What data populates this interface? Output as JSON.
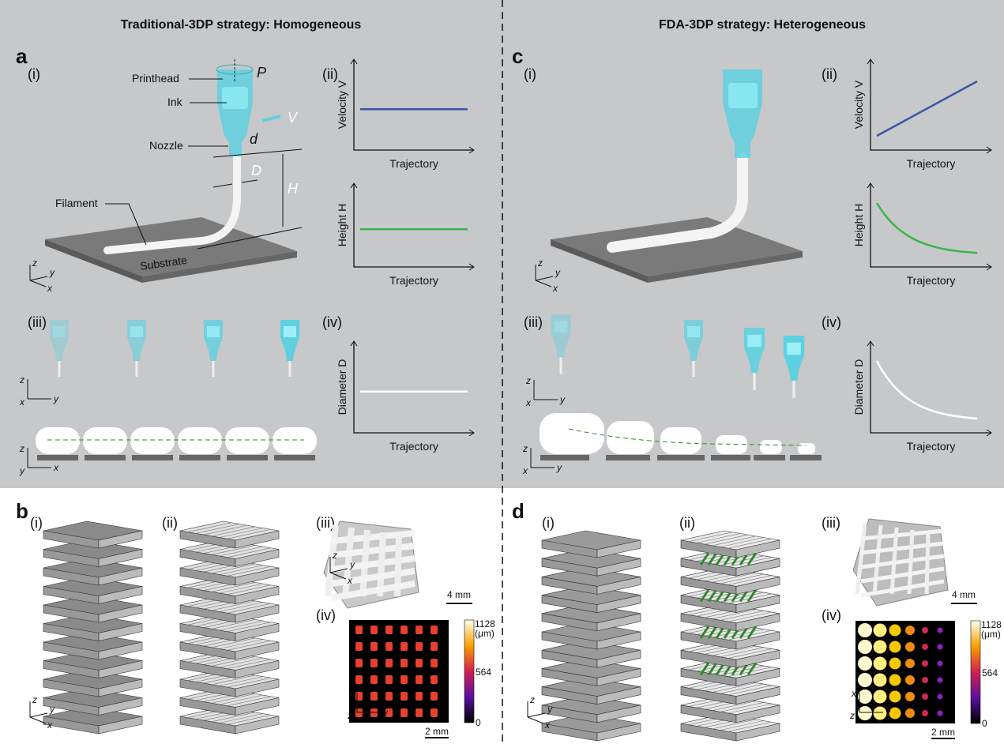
{
  "titles": {
    "left": "Traditional-3DP strategy: Homogeneous",
    "right": "FDA-3DP strategy: Heterogeneous"
  },
  "panels": {
    "a": "a",
    "b": "b",
    "c": "c",
    "d": "d"
  },
  "subpanels": {
    "i": "(i)",
    "ii": "(ii)",
    "iii": "(iii)",
    "iv": "(iv)"
  },
  "labels_a": {
    "printhead": "Printhead",
    "ink": "Ink",
    "nozzle": "Nozzle",
    "filament": "Filament",
    "substrate": "Substrate",
    "P": "P",
    "V": "V",
    "d": "d",
    "D": "D",
    "H": "H"
  },
  "axes": {
    "x": "x",
    "y": "y",
    "z": "z"
  },
  "chart_data": [
    {
      "type": "line",
      "panel": "a(ii)",
      "xlabel": "Trajectory",
      "ylabel": "Velocity V",
      "trend": "constant",
      "color": "#3a56a8"
    },
    {
      "type": "line",
      "panel": "a(ii)",
      "xlabel": "Trajectory",
      "ylabel": "Height H",
      "trend": "constant",
      "color": "#3cb44a"
    },
    {
      "type": "line",
      "panel": "a(iv)",
      "xlabel": "Trajectory",
      "ylabel": "Diameter D",
      "trend": "constant",
      "color": "#ffffff"
    },
    {
      "type": "line",
      "panel": "c(ii)",
      "xlabel": "Trajectory",
      "ylabel": "Velocity V",
      "trend": "linear increasing",
      "color": "#3a56a8"
    },
    {
      "type": "line",
      "panel": "c(ii)",
      "xlabel": "Trajectory",
      "ylabel": "Height H",
      "trend": "decaying",
      "color": "#3cb44a"
    },
    {
      "type": "line",
      "panel": "c(iv)",
      "xlabel": "Trajectory",
      "ylabel": "Diameter D",
      "trend": "decaying",
      "color": "#ffffff"
    }
  ],
  "colorbar": {
    "max": "1128",
    "unit": "(μm)",
    "mid": "564",
    "min": "0"
  },
  "scalebars": {
    "mm4": "4 mm",
    "mm2": "2 mm"
  },
  "colors": {
    "top_bg": "#c6c8ca",
    "ink": "#5fd0e0",
    "green": "#2f8a2a"
  }
}
